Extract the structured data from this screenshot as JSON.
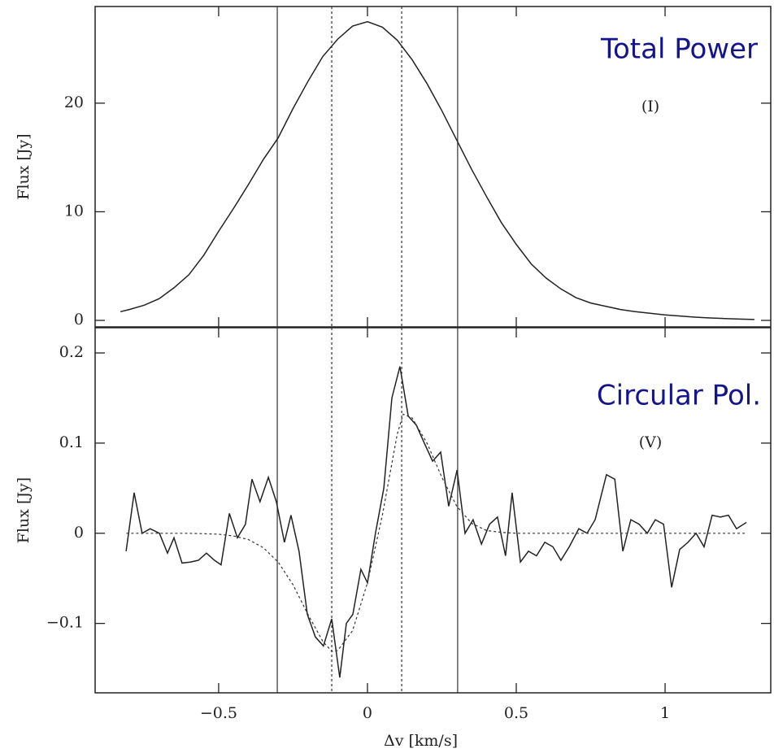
{
  "chart_data": [
    {
      "type": "line",
      "annotations": [
        "Total Power",
        "(I)"
      ],
      "ylabel": "Flux [Jy]",
      "xlim": [
        -0.915,
        1.355
      ],
      "ylim": [
        -0.6,
        28.9
      ],
      "xticks": [
        -0.5,
        0,
        0.5,
        1
      ],
      "yticks": [
        0,
        10,
        20
      ],
      "vlines": [
        {
          "value": -0.303,
          "style": "solid"
        },
        {
          "value": -0.12,
          "style": "dashed"
        },
        {
          "value": 0.115,
          "style": "dashed"
        },
        {
          "value": 0.303,
          "style": "solid"
        }
      ],
      "series": [
        {
          "color": "#222222",
          "style": "solid",
          "x": [
            -0.83,
            -0.8,
            -0.75,
            -0.7,
            -0.65,
            -0.6,
            -0.55,
            -0.5,
            -0.45,
            -0.4,
            -0.35,
            -0.3,
            -0.25,
            -0.2,
            -0.15,
            -0.1,
            -0.05,
            0,
            0.05,
            0.1,
            0.15,
            0.2,
            0.25,
            0.3,
            0.35,
            0.4,
            0.45,
            0.5,
            0.55,
            0.6,
            0.65,
            0.7,
            0.75,
            0.8,
            0.85,
            0.9,
            0.95,
            1.0,
            1.05,
            1.1,
            1.15,
            1.2,
            1.25,
            1.3
          ],
          "values": [
            0.8,
            1.0,
            1.4,
            2.0,
            3.0,
            4.2,
            6.0,
            8.2,
            10.3,
            12.5,
            14.8,
            16.8,
            19.5,
            22.0,
            24.3,
            25.9,
            27.1,
            27.5,
            27.0,
            25.8,
            24.0,
            21.8,
            19.3,
            16.6,
            13.9,
            11.4,
            9.0,
            7.0,
            5.2,
            3.9,
            2.9,
            2.1,
            1.6,
            1.3,
            1.0,
            0.8,
            0.65,
            0.5,
            0.4,
            0.3,
            0.22,
            0.17,
            0.12,
            0.08
          ]
        }
      ]
    },
    {
      "type": "line",
      "annotations": [
        "Circular Pol.",
        "(V)"
      ],
      "ylabel": "Flux [Jy]",
      "xlabel": "Δv [km/s]",
      "xlim": [
        -0.915,
        1.355
      ],
      "ylim": [
        -0.177,
        0.228
      ],
      "xticks": [
        {
          "value": -0.5,
          "label": "−0.5"
        },
        0,
        0.5,
        1
      ],
      "yticks": [
        {
          "value": -0.1,
          "label": "−0.1"
        },
        0,
        0.1,
        0.2
      ],
      "vlines": [
        {
          "value": -0.303,
          "style": "solid"
        },
        {
          "value": -0.12,
          "style": "dashed"
        },
        {
          "value": 0.115,
          "style": "dashed"
        },
        {
          "value": 0.303,
          "style": "solid"
        }
      ],
      "series": [
        {
          "color": "#222222",
          "style": "solid",
          "x": [
            -0.811,
            -0.784,
            -0.757,
            -0.73,
            -0.699,
            -0.672,
            -0.65,
            -0.623,
            -0.596,
            -0.568,
            -0.541,
            -0.514,
            -0.492,
            -0.464,
            -0.437,
            -0.41,
            -0.388,
            -0.361,
            -0.333,
            -0.306,
            -0.279,
            -0.257,
            -0.23,
            -0.202,
            -0.175,
            -0.148,
            -0.12,
            -0.093,
            -0.071,
            -0.049,
            -0.022,
            0,
            0.027,
            0.055,
            0.082,
            0.109,
            0.137,
            0.164,
            0.191,
            0.219,
            0.246,
            0.273,
            0.301,
            0.328,
            0.355,
            0.383,
            0.41,
            0.437,
            0.464,
            0.486,
            0.514,
            0.541,
            0.568,
            0.596,
            0.623,
            0.65,
            0.678,
            0.71,
            0.738,
            0.765,
            0.803,
            0.831,
            0.858,
            0.885,
            0.913,
            0.94,
            0.967,
            0.995,
            1.022,
            1.049,
            1.077,
            1.104,
            1.131,
            1.158,
            1.186,
            1.213,
            1.24,
            1.273
          ],
          "values": [
            -0.02,
            0.045,
            0.0,
            0.005,
            0.0,
            -0.022,
            -0.005,
            -0.033,
            -0.032,
            -0.03,
            -0.022,
            -0.03,
            -0.035,
            0.022,
            -0.005,
            0.01,
            0.06,
            0.035,
            0.062,
            0.035,
            -0.01,
            0.02,
            -0.02,
            -0.09,
            -0.115,
            -0.125,
            -0.095,
            -0.16,
            -0.1,
            -0.09,
            -0.04,
            -0.055,
            0.0,
            0.05,
            0.15,
            0.185,
            0.13,
            0.12,
            0.1,
            0.08,
            0.09,
            0.03,
            0.07,
            0.0,
            0.015,
            -0.012,
            0.01,
            0.018,
            -0.025,
            0.045,
            -0.032,
            -0.02,
            -0.025,
            -0.01,
            -0.015,
            -0.03,
            -0.015,
            0.005,
            0.0,
            0.015,
            0.065,
            0.06,
            -0.02,
            0.015,
            0.01,
            0.0,
            0.015,
            0.01,
            -0.06,
            -0.018,
            -0.01,
            0.0,
            -0.015,
            0.02,
            0.018,
            0.02,
            0.005,
            0.012
          ]
        },
        {
          "color": "#333333",
          "style": "dashed",
          "x": [
            -0.81,
            -0.7,
            -0.6,
            -0.5,
            -0.45,
            -0.4,
            -0.35,
            -0.3,
            -0.25,
            -0.2,
            -0.15,
            -0.12,
            -0.1,
            -0.05,
            0,
            0.05,
            0.1,
            0.12,
            0.15,
            0.2,
            0.25,
            0.3,
            0.35,
            0.4,
            0.45,
            0.5,
            0.8,
            1.0,
            1.27
          ],
          "values": [
            0,
            0,
            0,
            -0.001,
            -0.003,
            -0.007,
            -0.016,
            -0.032,
            -0.057,
            -0.09,
            -0.12,
            -0.131,
            -0.13,
            -0.108,
            -0.055,
            0.02,
            0.11,
            0.132,
            0.128,
            0.1,
            0.062,
            0.03,
            0.011,
            0.003,
            0.001,
            0,
            0,
            0,
            0
          ]
        }
      ]
    }
  ]
}
